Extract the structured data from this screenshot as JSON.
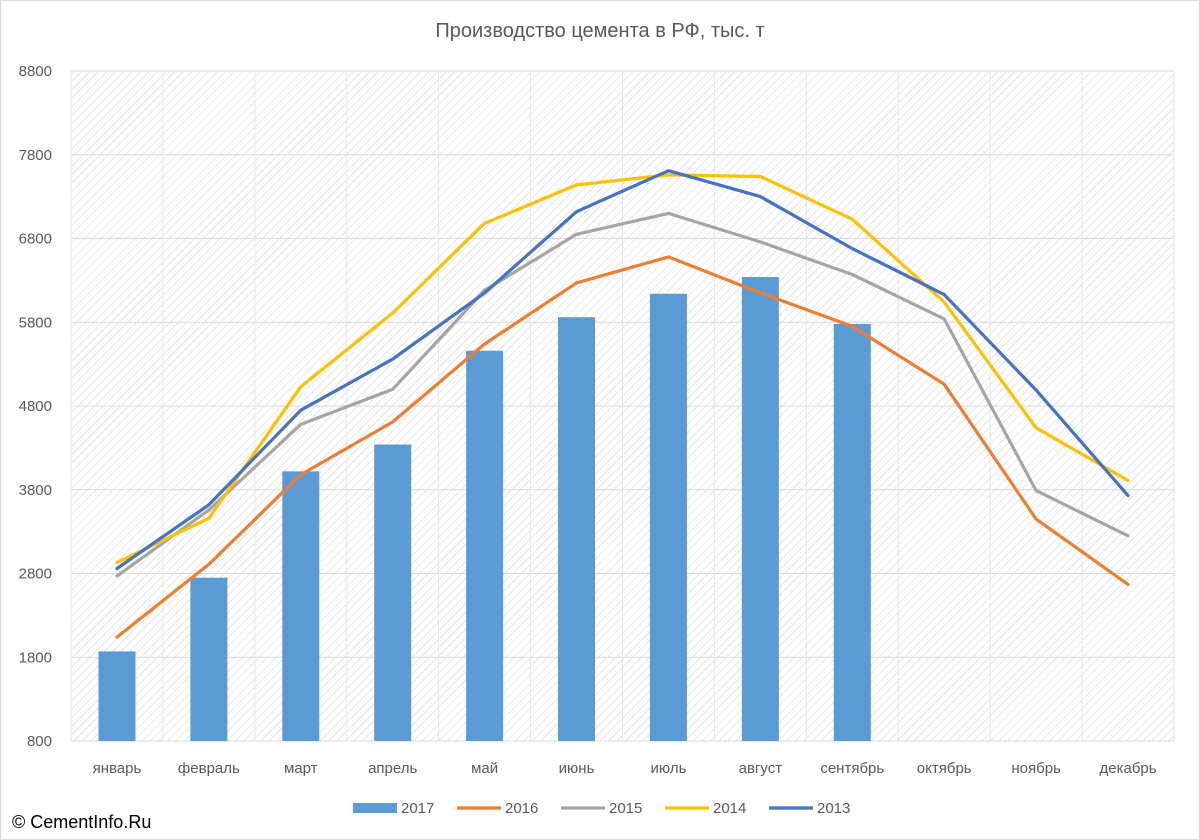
{
  "title": "Производство цемента в РФ, тыс. т",
  "copyright": "© CementInfo.Ru",
  "chart_data": {
    "type": "bar",
    "title": "Производство цемента в РФ, тыс. т",
    "categories": [
      "январь",
      "февраль",
      "март",
      "апрель",
      "май",
      "июнь",
      "июль",
      "август",
      "сентябрь",
      "октябрь",
      "ноябрь",
      "декабрь"
    ],
    "ylim": [
      800,
      8800
    ],
    "yticks": [
      800,
      1800,
      2800,
      3800,
      4800,
      5800,
      6800,
      7800,
      8800
    ],
    "grid": true,
    "legend_position": "bottom",
    "series": [
      {
        "name": "2017",
        "type": "bar",
        "color": "#5b9bd5",
        "values": [
          1870,
          2750,
          4020,
          4340,
          5460,
          5860,
          6140,
          6340,
          5780,
          null,
          null,
          null
        ]
      },
      {
        "name": "2016",
        "type": "line",
        "color": "#ed7d31",
        "values": [
          2040,
          2910,
          3980,
          4610,
          5540,
          6270,
          6580,
          6150,
          5750,
          5060,
          3450,
          2670
        ]
      },
      {
        "name": "2015",
        "type": "line",
        "color": "#a5a5a5",
        "values": [
          2770,
          3560,
          4580,
          5000,
          6180,
          6850,
          7100,
          6760,
          6370,
          5840,
          3790,
          3250
        ]
      },
      {
        "name": "2014",
        "type": "line",
        "color": "#ffc000",
        "values": [
          2930,
          3460,
          5030,
          5910,
          6980,
          7440,
          7560,
          7540,
          7030,
          6040,
          4540,
          3910
        ]
      },
      {
        "name": "2013",
        "type": "line",
        "color": "#4472c4",
        "values": [
          2860,
          3620,
          4750,
          5360,
          6150,
          7120,
          7610,
          7300,
          6680,
          6130,
          4990,
          3730
        ]
      }
    ]
  }
}
